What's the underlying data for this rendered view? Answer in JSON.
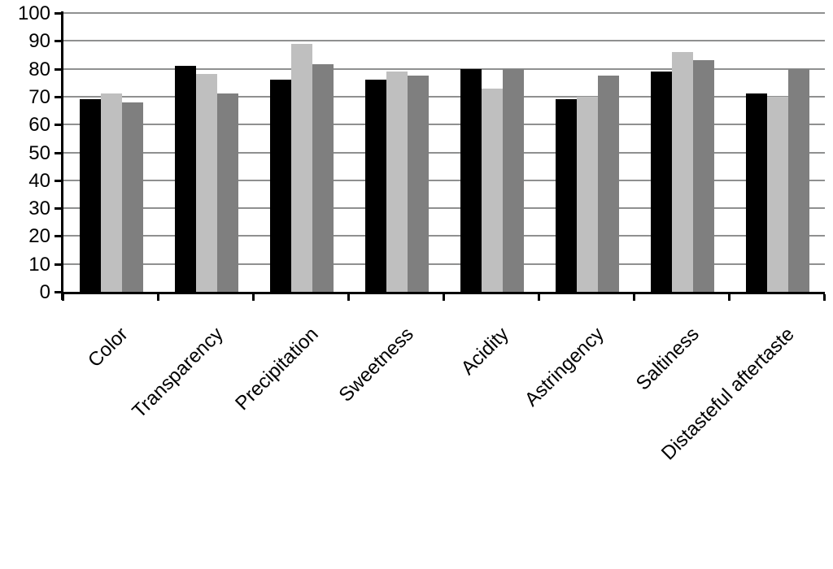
{
  "chart_data": {
    "type": "bar",
    "title": "",
    "xlabel": "",
    "ylabel": "",
    "categories": [
      "Color",
      "Transparency",
      "Precipitation",
      "Sweetness",
      "Acidity",
      "Astringency",
      "Saltiness",
      "Distasteful aftertaste"
    ],
    "series": [
      {
        "name": "black",
        "color": "#000000",
        "values": [
          69,
          81,
          76,
          76,
          80,
          69,
          79,
          71
        ]
      },
      {
        "name": "light-gray",
        "color": "#bfbfbf",
        "values": [
          71,
          78,
          89,
          79,
          73,
          70,
          86,
          70
        ]
      },
      {
        "name": "dark-gray",
        "color": "#7f7f7f",
        "values": [
          68,
          71,
          81.5,
          77.5,
          80,
          77.5,
          83,
          80
        ]
      }
    ],
    "y_axis": {
      "min": 0,
      "max": 100,
      "tick_interval": 10,
      "tick_labels": [
        "0",
        "10",
        "20",
        "30",
        "40",
        "50",
        "60",
        "70",
        "80",
        "90",
        "100"
      ]
    },
    "grid": true,
    "legend_position": "none",
    "axis_color": "#000000",
    "gridline_color": "#8f9090",
    "background_color": "#ffffff"
  }
}
